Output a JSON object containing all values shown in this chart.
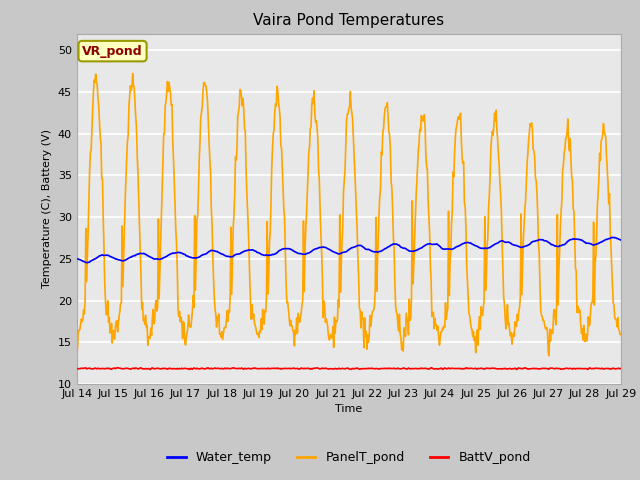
{
  "title": "Vaira Pond Temperatures",
  "xlabel": "Time",
  "ylabel": "Temperature (C), Battery (V)",
  "ylim": [
    10,
    52
  ],
  "yticks": [
    10,
    15,
    20,
    25,
    30,
    35,
    40,
    45,
    50
  ],
  "fig_bg_color": "#c8c8c8",
  "plot_bg_color": "#e8e8e8",
  "legend_labels": [
    "Water_temp",
    "PanelT_pond",
    "BattV_pond"
  ],
  "legend_colors": [
    "blue",
    "#FFA500",
    "red"
  ],
  "annotation_text": "VR_pond",
  "annotation_color": "#8B0000",
  "annotation_bg": "#FFFFC0",
  "annotation_border": "#999900",
  "xtick_labels": [
    "Jul 14",
    "Jul 15",
    "Jul 16",
    "Jul 17",
    "Jul 18",
    "Jul 19",
    "Jul 20",
    "Jul 21",
    "Jul 22",
    "Jul 23",
    "Jul 24",
    "Jul 25",
    "Jul 26",
    "Jul 27",
    "Jul 28",
    "Jul 29"
  ],
  "water_color": "blue",
  "panel_color": "#FFA500",
  "batt_color": "red",
  "line_width": 1.2,
  "title_fontsize": 11,
  "label_fontsize": 8,
  "tick_fontsize": 8
}
